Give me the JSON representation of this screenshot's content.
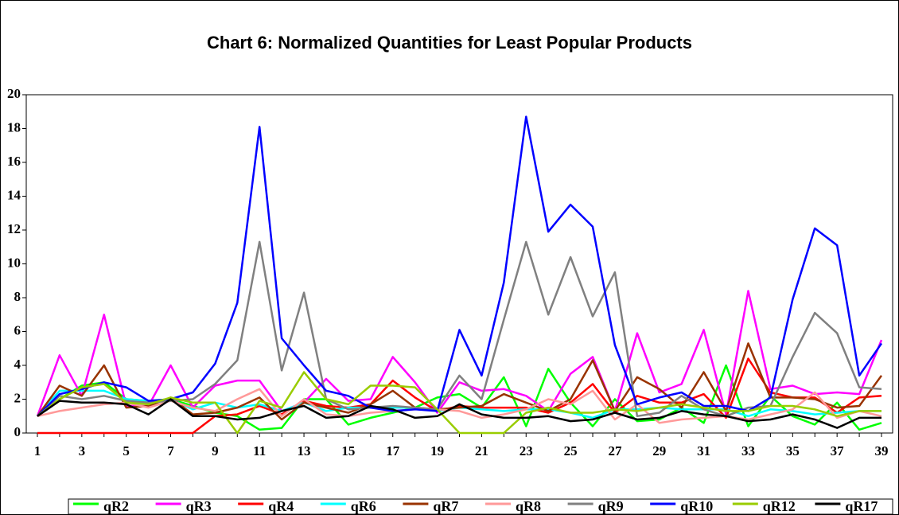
{
  "chart_data": {
    "type": "line",
    "title": "Chart 6: Normalized Quantities for Least Popular Products",
    "categories": [
      1,
      null,
      3,
      null,
      5,
      null,
      7,
      null,
      9,
      null,
      11,
      null,
      13,
      null,
      15,
      null,
      17,
      null,
      19,
      null,
      21,
      null,
      23,
      null,
      25,
      null,
      27,
      null,
      29,
      null,
      31,
      null,
      33,
      null,
      35,
      null,
      37,
      null,
      39
    ],
    "ylim": [
      0,
      20
    ],
    "yticks": [
      0,
      2,
      4,
      6,
      8,
      10,
      12,
      14,
      16,
      18,
      20
    ],
    "grid": false,
    "series": [
      {
        "name": "qR2",
        "color": "#00ff00",
        "values": [
          1,
          2.0,
          2.8,
          3.0,
          2.0,
          1.9,
          2.0,
          1.6,
          1.2,
          1.0,
          0.2,
          0.3,
          2.0,
          2.0,
          0.5,
          0.9,
          1.2,
          1.5,
          2.1,
          2.3,
          1.5,
          3.3,
          0.4,
          3.8,
          1.8,
          0.4,
          2.0,
          0.7,
          0.8,
          1.5,
          0.6,
          4.0,
          0.4,
          2.2,
          1.0,
          0.5,
          1.8,
          0.2,
          0.6
        ]
      },
      {
        "name": "qR3",
        "color": "#ff00ff",
        "values": [
          1,
          4.6,
          2.2,
          7.0,
          1.6,
          1.6,
          4.0,
          1.5,
          2.8,
          3.1,
          3.1,
          1.3,
          1.8,
          3.2,
          1.9,
          2.0,
          4.5,
          3.0,
          1.2,
          3.0,
          2.5,
          2.6,
          2.2,
          1.3,
          3.5,
          4.5,
          1.3,
          5.9,
          2.4,
          2.9,
          6.1,
          1.1,
          8.4,
          2.6,
          2.8,
          2.3,
          2.4,
          2.3,
          5.5
        ]
      },
      {
        "name": "qR4",
        "color": "#ff0000",
        "values": [
          0,
          0,
          0,
          0,
          0,
          0,
          0,
          0,
          1.0,
          1.1,
          1.6,
          1.1,
          1.9,
          1.6,
          1.5,
          1.7,
          3.1,
          2.1,
          1.3,
          1.6,
          1.5,
          1.5,
          1.5,
          1.2,
          1.8,
          2.9,
          1.2,
          2.2,
          1.8,
          1.8,
          2.3,
          0.9,
          4.4,
          2.4,
          2.1,
          2.1,
          1.2,
          2.1,
          2.2
        ]
      },
      {
        "name": "qR6",
        "color": "#00ffff",
        "values": [
          1,
          2.5,
          2.5,
          2.5,
          2.0,
          1.9,
          2.0,
          1.4,
          1.8,
          1.5,
          1.7,
          1.3,
          1.8,
          1.3,
          1.5,
          1.5,
          1.5,
          1.5,
          1.3,
          1.5,
          1.4,
          1.3,
          1.4,
          1.4,
          1.2,
          0.9,
          1.4,
          1.4,
          1.5,
          1.4,
          1.4,
          1.4,
          1.0,
          1.4,
          1.3,
          1.1,
          1.2,
          1.3,
          1.3
        ]
      },
      {
        "name": "qR7",
        "color": "#993300",
        "values": [
          1,
          2.8,
          2.2,
          4.0,
          1.5,
          1.6,
          2.1,
          1.1,
          1.2,
          1.5,
          2.1,
          0.8,
          1.8,
          1.5,
          1.2,
          1.7,
          2.5,
          1.5,
          1.4,
          1.5,
          1.6,
          2.3,
          1.8,
          1.3,
          2.0,
          4.3,
          1.3,
          3.3,
          2.6,
          1.5,
          3.6,
          1.3,
          5.3,
          2.1,
          2.1,
          2.0,
          1.5,
          1.6,
          3.4
        ]
      },
      {
        "name": "qR8",
        "color": "#ff9999",
        "values": [
          1,
          1.3,
          1.5,
          1.7,
          1.8,
          1.5,
          1.9,
          1.5,
          1.3,
          2.0,
          2.6,
          1.0,
          2.0,
          1.1,
          1.0,
          1.2,
          1.3,
          1.4,
          1.4,
          1.3,
          0.9,
          1.1,
          1.4,
          2.0,
          1.7,
          2.5,
          0.8,
          1.7,
          0.6,
          0.8,
          0.9,
          1.0,
          0.8,
          1.1,
          1.4,
          2.4,
          0.9,
          1.3,
          1.0
        ]
      },
      {
        "name": "qR9",
        "color": "#808080",
        "values": [
          1,
          2.2,
          2.0,
          2.2,
          1.9,
          1.8,
          1.9,
          2.0,
          2.9,
          4.3,
          11.3,
          3.7,
          8.3,
          2.0,
          1.4,
          1.5,
          1.6,
          1.5,
          1.4,
          3.4,
          2.0,
          6.7,
          11.3,
          7.0,
          10.4,
          6.9,
          9.5,
          1.0,
          1.2,
          2.2,
          1.4,
          1.0,
          1.5,
          1.6,
          4.5,
          7.1,
          5.9,
          2.7,
          2.6
        ]
      },
      {
        "name": "qR10",
        "color": "#0000ff",
        "values": [
          1,
          2.3,
          2.6,
          3.0,
          2.7,
          1.9,
          2.0,
          2.4,
          4.1,
          7.7,
          18.1,
          5.6,
          4.0,
          2.5,
          2.2,
          1.5,
          1.3,
          1.4,
          1.3,
          6.1,
          3.4,
          8.9,
          18.7,
          11.9,
          13.5,
          12.2,
          5.2,
          1.7,
          2.1,
          2.4,
          1.6,
          1.6,
          1.3,
          2.1,
          7.9,
          12.1,
          11.1,
          3.4,
          5.3
        ]
      },
      {
        "name": "qR12",
        "color": "#99cc00",
        "values": [
          1,
          2.0,
          2.7,
          2.9,
          1.8,
          1.7,
          2.1,
          1.8,
          1.8,
          0.0,
          1.9,
          1.5,
          3.6,
          2.0,
          1.7,
          2.8,
          2.8,
          2.7,
          1.4,
          0.0,
          0.0,
          0.0,
          1.2,
          1.5,
          1.2,
          1.2,
          1.4,
          1.3,
          1.5,
          1.7,
          1.5,
          1.3,
          1.3,
          1.6,
          1.6,
          1.4,
          1.0,
          1.3,
          1.3
        ]
      },
      {
        "name": "qR17",
        "color": "#000000",
        "values": [
          1,
          1.9,
          1.8,
          1.8,
          1.7,
          1.1,
          2.0,
          1.0,
          1.0,
          0.8,
          0.9,
          1.3,
          1.6,
          0.9,
          1.0,
          1.6,
          1.4,
          0.9,
          1.0,
          1.7,
          1.1,
          0.9,
          0.9,
          1.0,
          0.7,
          0.8,
          1.2,
          0.8,
          0.9,
          1.3,
          1.1,
          1.0,
          0.7,
          0.8,
          1.1,
          0.8,
          0.3,
          0.9,
          0.9
        ]
      }
    ]
  }
}
